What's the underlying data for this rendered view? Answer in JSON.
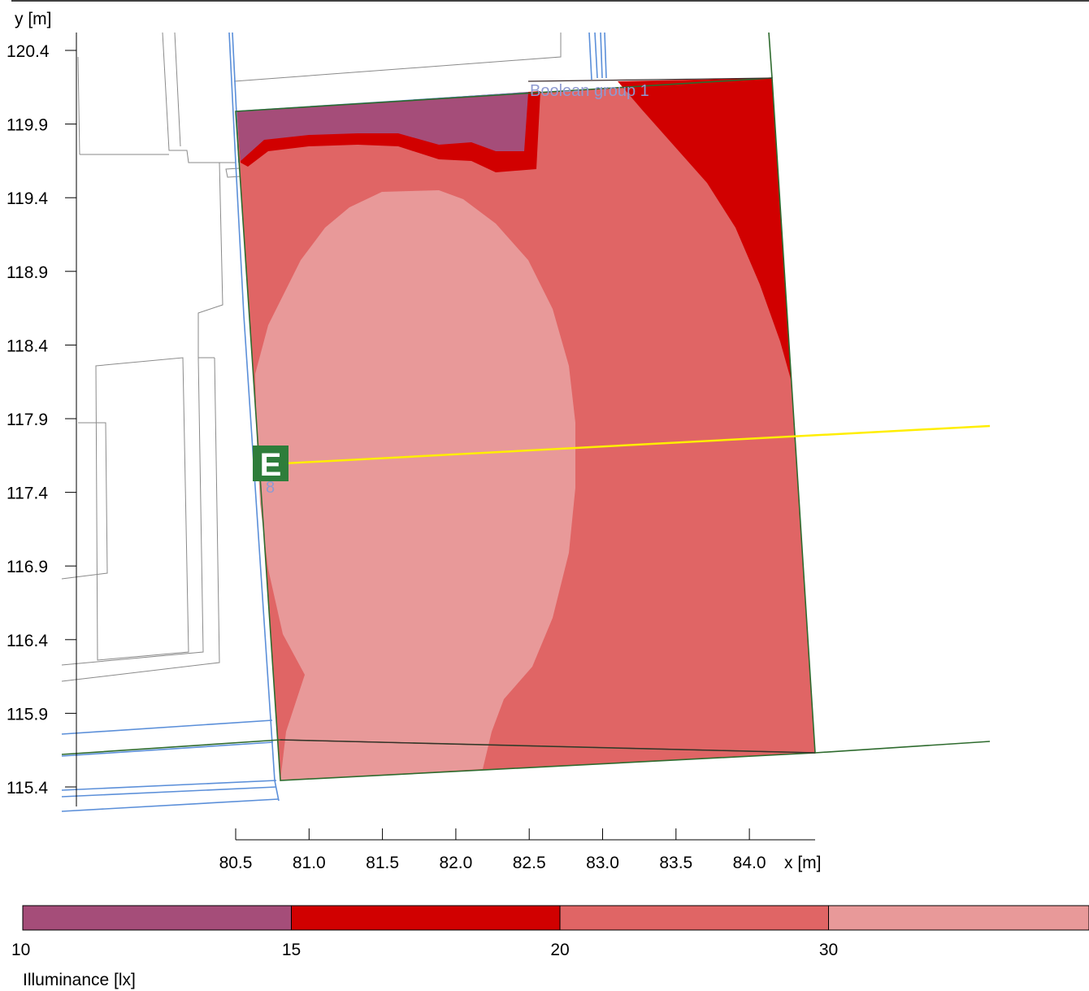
{
  "axes": {
    "y_label": "y [m]",
    "x_label": "x [m]",
    "y_ticks": [
      "120.4",
      "119.9",
      "119.4",
      "118.9",
      "118.4",
      "117.9",
      "117.4",
      "116.9",
      "116.4",
      "115.9",
      "115.4"
    ],
    "x_ticks": [
      "80.5",
      "81.0",
      "81.5",
      "82.0",
      "82.5",
      "83.0",
      "83.5",
      "84.0"
    ]
  },
  "labels": {
    "group": "Boolean group 1",
    "exit_sign": "E",
    "exit_number": "8"
  },
  "legend": {
    "title": "Illuminance [lx]",
    "bins": [
      {
        "label": "10",
        "color": "#a54d79"
      },
      {
        "label": "15",
        "color": "#d10000"
      },
      {
        "label": "20",
        "color": "#e06565"
      },
      {
        "label": "30",
        "color": "#e89999"
      }
    ]
  },
  "colors": {
    "band_10_15": "#a54d79",
    "band_15_20": "#d10000",
    "band_20_30": "#e06565",
    "band_30_plus": "#e89999",
    "outline_blue": "#5b8fd9",
    "outline_green": "#2e6b2e",
    "yellow_line": "#ffee00",
    "exit_green": "#2e7d3a"
  }
}
